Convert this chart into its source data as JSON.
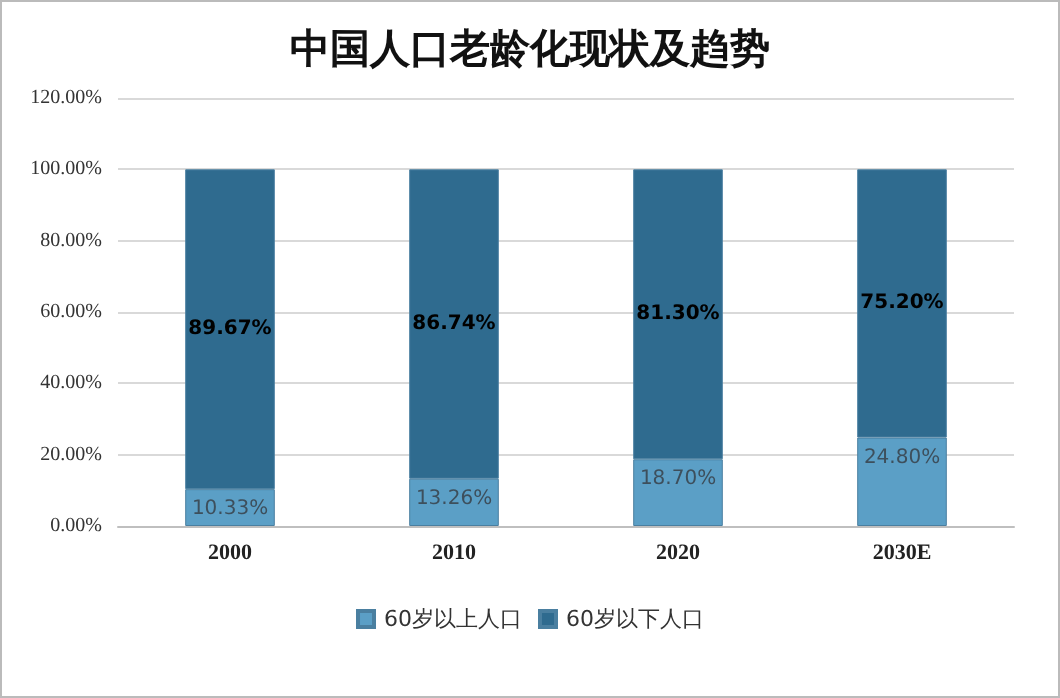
{
  "chart_data": {
    "type": "bar",
    "title": "中国人口老龄化现状及趋势",
    "categories": [
      "2000",
      "2010",
      "2020",
      "2030E"
    ],
    "stacked": true,
    "series": [
      {
        "name": "60岁以上人口",
        "color": "#5b9fc6",
        "values": [
          10.33,
          13.26,
          18.7,
          24.8
        ],
        "value_labels": [
          "10.33%",
          "13.26%",
          "18.70%",
          "24.80%"
        ]
      },
      {
        "name": "60岁以下人口",
        "color": "#2f6b8f",
        "values": [
          89.67,
          86.74,
          81.3,
          75.2
        ],
        "value_labels": [
          "89.67%",
          "86.74%",
          "81.30%",
          "75.20%"
        ]
      }
    ],
    "ylim": [
      0,
      120
    ],
    "yticks": [
      {
        "value": 0,
        "label": "0.00%"
      },
      {
        "value": 20,
        "label": "20.00%"
      },
      {
        "value": 40,
        "label": "40.00%"
      },
      {
        "value": 60,
        "label": "60.00%"
      },
      {
        "value": 80,
        "label": "80.00%"
      },
      {
        "value": 100,
        "label": "100.00%"
      },
      {
        "value": 120,
        "label": "120.00%"
      }
    ],
    "grid": "y",
    "legend": "bottom"
  }
}
